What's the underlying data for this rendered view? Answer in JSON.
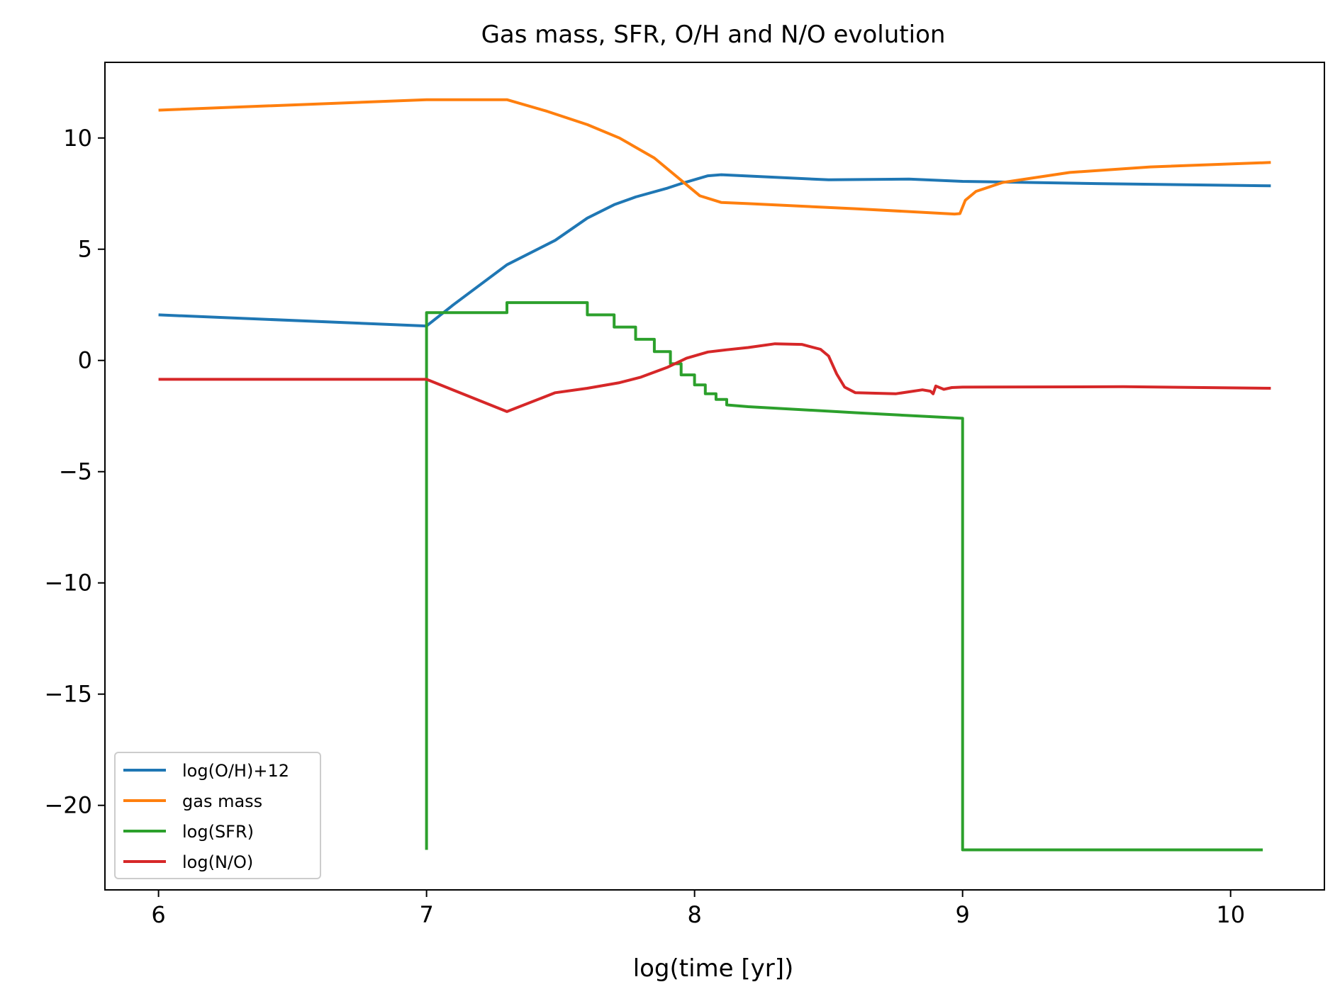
{
  "chart_data": {
    "type": "line",
    "title": "Gas mass, SFR, O/H and N/O evolution",
    "xlabel": "log(time [yr])",
    "ylabel": "",
    "xlim": [
      5.8,
      10.35
    ],
    "ylim": [
      -23.8,
      13.4
    ],
    "xticks": [
      6,
      7,
      8,
      9,
      10
    ],
    "xtick_labels": [
      "6",
      "7",
      "8",
      "9",
      "10"
    ],
    "yticks": [
      10,
      5,
      0,
      -5,
      -10,
      -15,
      -20
    ],
    "ytick_labels": [
      "10",
      "5",
      "0",
      "−5",
      "−10",
      "−15",
      "−20"
    ],
    "grid": false,
    "legend_position": "lower-left",
    "series": [
      {
        "name": "log(O/H)+12",
        "color": "#1f77b4",
        "points": [
          [
            6.0,
            2.05
          ],
          [
            7.0,
            1.55
          ],
          [
            7.1,
            2.5
          ],
          [
            7.3,
            4.3
          ],
          [
            7.48,
            5.4
          ],
          [
            7.6,
            6.4
          ],
          [
            7.7,
            7.0
          ],
          [
            7.78,
            7.35
          ],
          [
            7.9,
            7.75
          ],
          [
            7.95,
            7.95
          ],
          [
            8.05,
            8.3
          ],
          [
            8.1,
            8.35
          ],
          [
            8.5,
            8.12
          ],
          [
            8.8,
            8.15
          ],
          [
            9.0,
            8.05
          ],
          [
            9.5,
            7.95
          ],
          [
            10.15,
            7.85
          ]
        ]
      },
      {
        "name": "gas mass",
        "color": "#ff7f0e",
        "points": [
          [
            6.0,
            11.25
          ],
          [
            7.0,
            11.72
          ],
          [
            7.3,
            11.72
          ],
          [
            7.45,
            11.2
          ],
          [
            7.6,
            10.6
          ],
          [
            7.72,
            10.0
          ],
          [
            7.85,
            9.1
          ],
          [
            7.95,
            8.1
          ],
          [
            8.02,
            7.4
          ],
          [
            8.1,
            7.1
          ],
          [
            8.2,
            7.05
          ],
          [
            8.6,
            6.82
          ],
          [
            8.97,
            6.58
          ],
          [
            8.99,
            6.6
          ],
          [
            9.01,
            7.2
          ],
          [
            9.05,
            7.6
          ],
          [
            9.15,
            8.0
          ],
          [
            9.4,
            8.45
          ],
          [
            9.7,
            8.7
          ],
          [
            10.15,
            8.9
          ]
        ]
      },
      {
        "name": "log(SFR)",
        "color": "#2ca02c",
        "points": [
          [
            7.0,
            -22.0
          ],
          [
            7.0,
            2.15
          ],
          [
            7.3,
            2.15
          ],
          [
            7.3,
            2.6
          ],
          [
            7.6,
            2.6
          ],
          [
            7.6,
            2.05
          ],
          [
            7.7,
            2.05
          ],
          [
            7.7,
            1.5
          ],
          [
            7.78,
            1.5
          ],
          [
            7.78,
            0.95
          ],
          [
            7.85,
            0.95
          ],
          [
            7.85,
            0.4
          ],
          [
            7.91,
            0.4
          ],
          [
            7.91,
            -0.15
          ],
          [
            7.95,
            -0.15
          ],
          [
            7.95,
            -0.65
          ],
          [
            8.0,
            -0.65
          ],
          [
            8.0,
            -1.1
          ],
          [
            8.04,
            -1.1
          ],
          [
            8.04,
            -1.5
          ],
          [
            8.08,
            -1.5
          ],
          [
            8.08,
            -1.75
          ],
          [
            8.12,
            -1.75
          ],
          [
            8.12,
            -2.0
          ],
          [
            8.2,
            -2.08
          ],
          [
            8.6,
            -2.35
          ],
          [
            9.0,
            -2.6
          ],
          [
            9.0,
            -22.0
          ],
          [
            10.12,
            -22.0
          ]
        ]
      },
      {
        "name": "log(N/O)",
        "color": "#d62728",
        "points": [
          [
            6.0,
            -0.85
          ],
          [
            7.0,
            -0.85
          ],
          [
            7.3,
            -2.3
          ],
          [
            7.48,
            -1.45
          ],
          [
            7.6,
            -1.25
          ],
          [
            7.72,
            -1.0
          ],
          [
            7.8,
            -0.75
          ],
          [
            7.9,
            -0.3
          ],
          [
            7.97,
            0.1
          ],
          [
            8.05,
            0.38
          ],
          [
            8.12,
            0.48
          ],
          [
            8.2,
            0.58
          ],
          [
            8.3,
            0.75
          ],
          [
            8.4,
            0.72
          ],
          [
            8.47,
            0.5
          ],
          [
            8.5,
            0.2
          ],
          [
            8.53,
            -0.6
          ],
          [
            8.56,
            -1.2
          ],
          [
            8.6,
            -1.45
          ],
          [
            8.75,
            -1.5
          ],
          [
            8.85,
            -1.32
          ],
          [
            8.88,
            -1.38
          ],
          [
            8.89,
            -1.5
          ],
          [
            8.9,
            -1.15
          ],
          [
            8.93,
            -1.3
          ],
          [
            8.96,
            -1.22
          ],
          [
            9.0,
            -1.2
          ],
          [
            9.6,
            -1.18
          ],
          [
            10.15,
            -1.25
          ]
        ]
      }
    ]
  }
}
